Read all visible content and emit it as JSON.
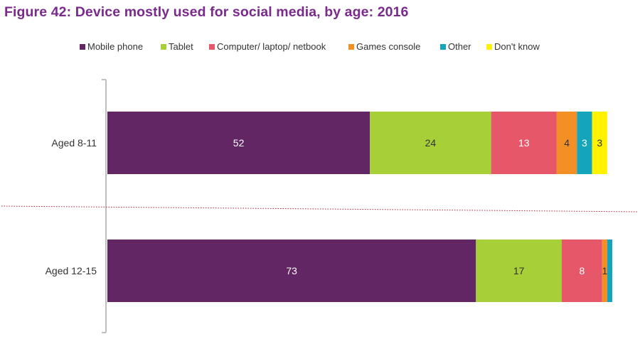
{
  "title": "Figure 42: Device mostly used for social media, by age: 2016",
  "colors": {
    "title": "#7a2a8c",
    "axis": "#bfbfbf",
    "divider": "#b8203a"
  },
  "chart_data": {
    "type": "bar",
    "orientation": "horizontal",
    "stacked": true,
    "title": "Figure 42: Device mostly used for social media, by age: 2016",
    "xlabel": "",
    "ylabel": "",
    "xlim": [
      0,
      100
    ],
    "legend_position": "top",
    "grid": false,
    "categories": [
      "Aged 8-11",
      "Aged 12-15"
    ],
    "series": [
      {
        "name": "Mobile phone",
        "color": "#612663",
        "label_color": "#ffffff",
        "values": [
          52,
          73
        ],
        "labels": [
          "52",
          "73"
        ]
      },
      {
        "name": "Tablet",
        "color": "#a7cf38",
        "label_color": "#333333",
        "values": [
          24,
          17
        ],
        "labels": [
          "24",
          "17"
        ]
      },
      {
        "name": "Computer/ laptop/ netbook",
        "color": "#e6576a",
        "label_color": "#ffffff",
        "values": [
          13,
          8
        ],
        "labels": [
          "13",
          "8"
        ]
      },
      {
        "name": "Games console",
        "color": "#f39025",
        "label_color": "#333333",
        "values": [
          4,
          1
        ],
        "labels": [
          "4",
          "1"
        ]
      },
      {
        "name": "Other",
        "color": "#14a4bb",
        "label_color": "#ffffff",
        "values": [
          3,
          1
        ],
        "labels": [
          "3",
          ""
        ]
      },
      {
        "name": "Don't know",
        "color": "#fff200",
        "label_color": "#333333",
        "values": [
          3,
          0
        ],
        "labels": [
          "3",
          ""
        ]
      }
    ]
  }
}
